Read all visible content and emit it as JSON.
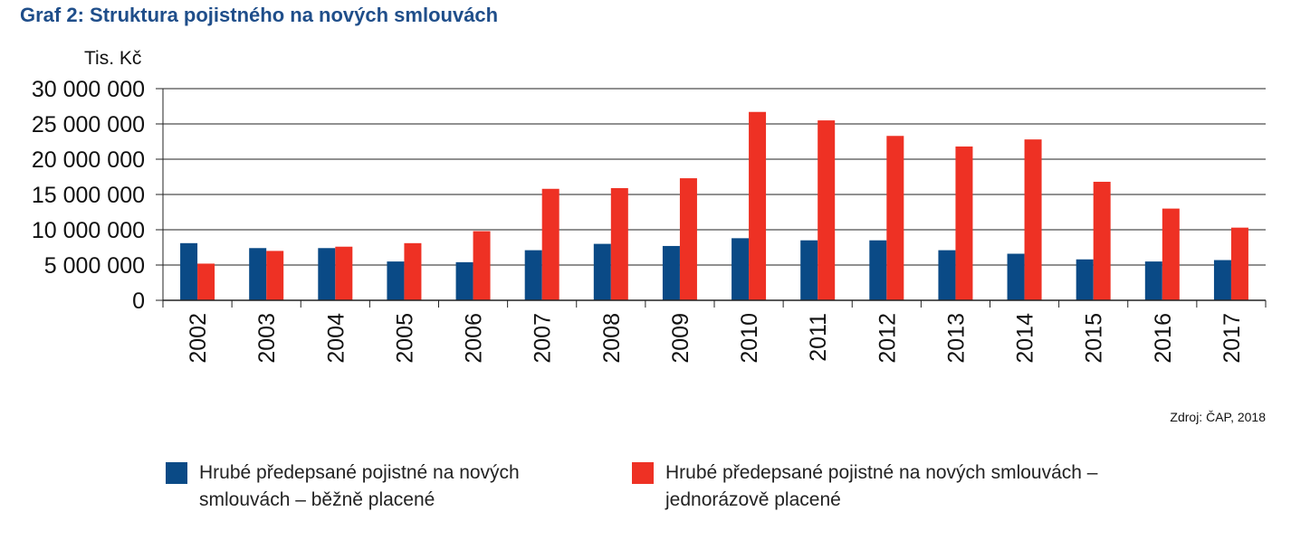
{
  "chart_data": {
    "type": "bar",
    "title": "Graf 2: Struktura pojistného na nových smlouvách",
    "ylabel": "Tis. Kč",
    "xlabel": "",
    "source": "Zdroj: ČAP, 2018",
    "ylim": [
      0,
      30000000
    ],
    "yticks": [
      0,
      5000000,
      10000000,
      15000000,
      20000000,
      25000000,
      30000000
    ],
    "ytick_labels": [
      "0",
      "5 000 000",
      "10 000 000",
      "15 000 000",
      "20 000 000",
      "25 000 000",
      "30 000 000"
    ],
    "grid": true,
    "legend_position": "bottom",
    "categories": [
      "2002",
      "2003",
      "2004",
      "2005",
      "2006",
      "2007",
      "2008",
      "2009",
      "2010",
      "2011",
      "2012",
      "2013",
      "2014",
      "2015",
      "2016",
      "2017"
    ],
    "series": [
      {
        "name": "Hrubé předepsané pojistné na nových smlouvách – běžně placené",
        "color": "#0a4a86",
        "values": [
          8100000,
          7400000,
          7400000,
          5500000,
          5400000,
          7100000,
          8000000,
          7700000,
          8800000,
          8500000,
          8500000,
          7100000,
          6600000,
          5800000,
          5500000,
          5700000
        ]
      },
      {
        "name": "Hrubé předepsané pojistné na nových smlouvách – jednorázově placené",
        "color": "#ee3124",
        "values": [
          5200000,
          7000000,
          7600000,
          8100000,
          9800000,
          15800000,
          15900000,
          17300000,
          26700000,
          25500000,
          23300000,
          21800000,
          22800000,
          16800000,
          13000000,
          10300000
        ]
      }
    ]
  },
  "legend": {
    "item1": {
      "line1": "Hrubé předepsané pojistné na nových",
      "line2": "smlouvách – běžně placené"
    },
    "item2": {
      "line1": "Hrubé předepsané pojistné na nových smlouvách –",
      "line2": "jednorázově placené"
    }
  }
}
